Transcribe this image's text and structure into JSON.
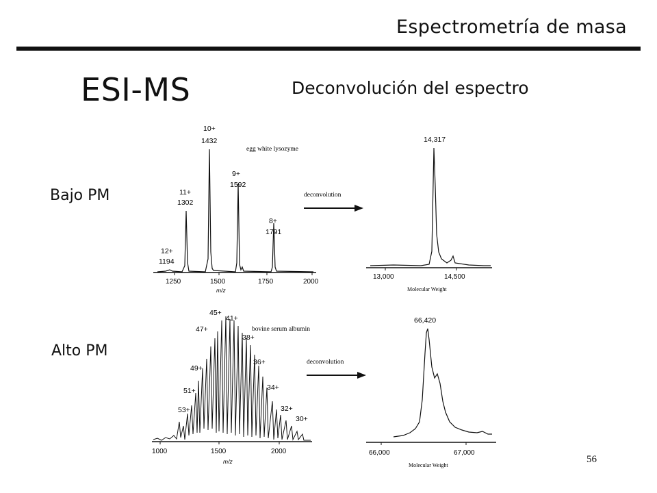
{
  "header": {
    "title": "Espectrometría de masa"
  },
  "slide": {
    "title": "ESI-MS",
    "subtitle": "Deconvolución del espectro",
    "page_number": "56",
    "row_labels": {
      "low": "Bajo PM",
      "high": "Alto PM"
    }
  },
  "figures": {
    "low_esi": {
      "sample": "egg white lysozyme",
      "axis_label": "m/z",
      "ticks": [
        "1250",
        "1500",
        "1750",
        "2000"
      ],
      "peaks": [
        {
          "charge": "12+",
          "mz": "1194"
        },
        {
          "charge": "11+",
          "mz": "1302"
        },
        {
          "charge": "10+",
          "mz": "1432"
        },
        {
          "charge": "9+",
          "mz": "1592"
        },
        {
          "charge": "8+",
          "mz": "1791"
        }
      ]
    },
    "low_arrow": {
      "label": "deconvolution"
    },
    "low_deconv": {
      "peak_label": "14,317",
      "ticks": [
        "13,000",
        "14,500"
      ],
      "axis_label": "Molecular Weight"
    },
    "high_esi": {
      "sample": "bovine serum albumin",
      "axis_label": "m/z",
      "ticks": [
        "1000",
        "1500",
        "2000"
      ],
      "charges": [
        "53+",
        "51+",
        "49+",
        "47+",
        "45+",
        "41+",
        "38+",
        "36+",
        "34+",
        "32+",
        "30+"
      ]
    },
    "high_arrow": {
      "label": "deconvolution"
    },
    "high_deconv": {
      "peak_label": "66,420",
      "ticks": [
        "66,000",
        "67,000"
      ],
      "axis_label": "Molecular Weight"
    }
  }
}
